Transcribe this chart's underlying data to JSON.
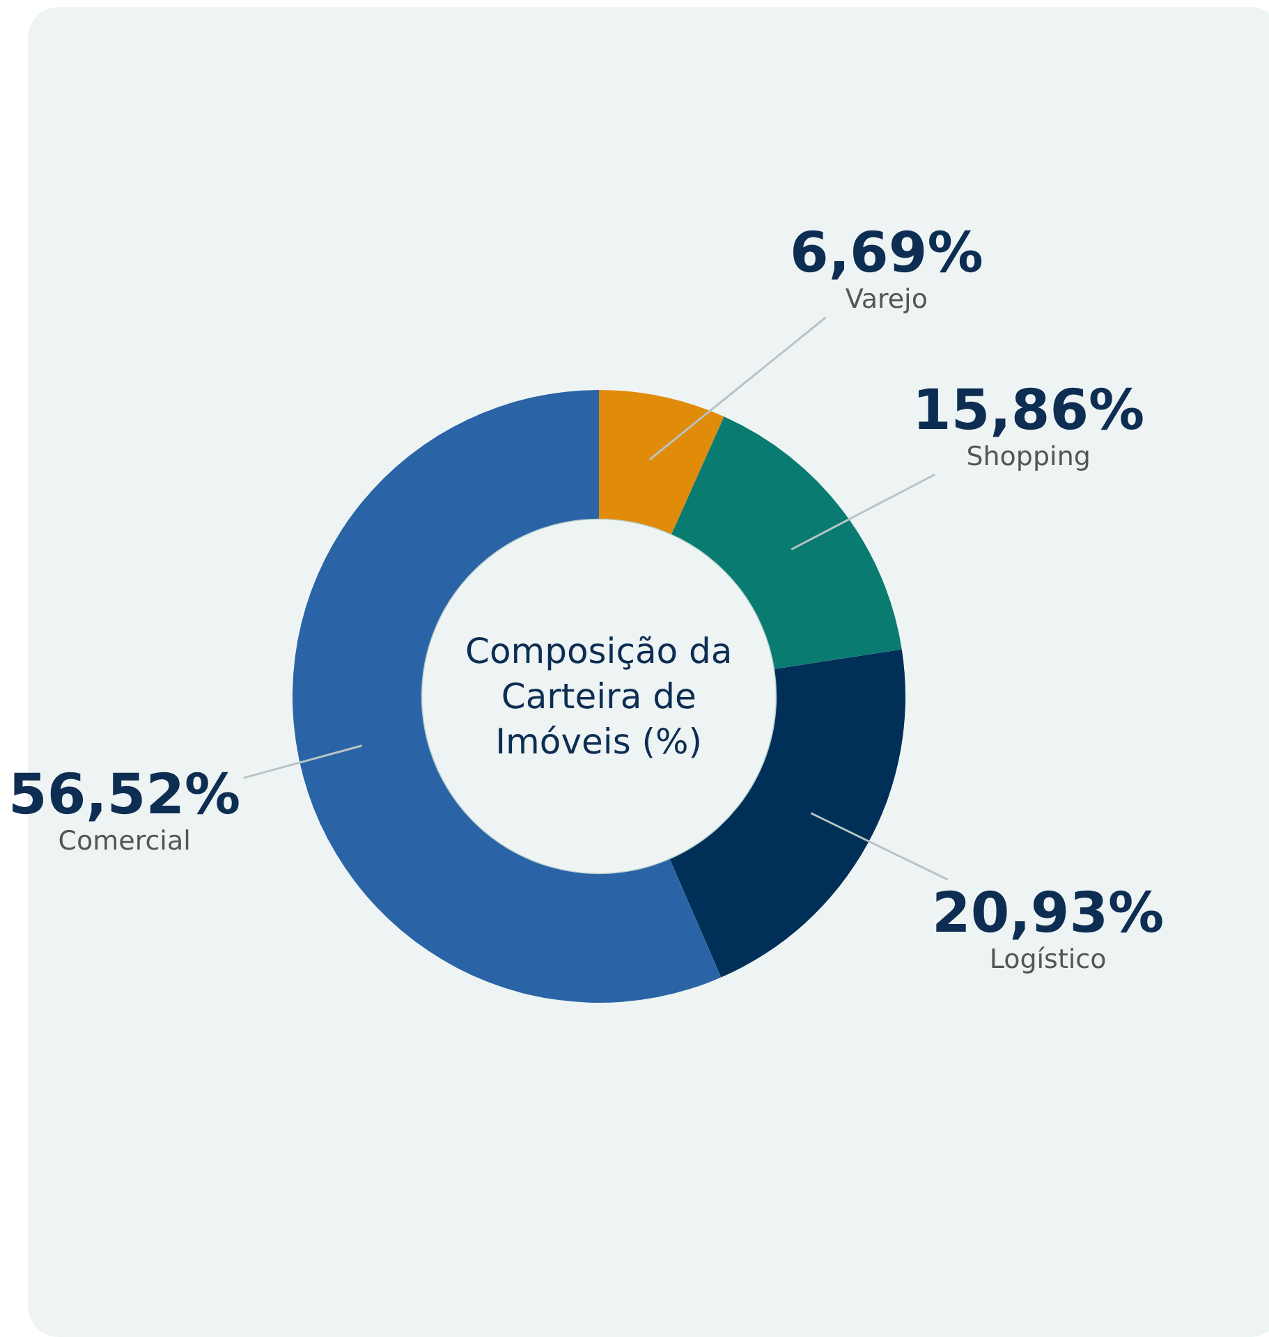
{
  "chart_data": {
    "type": "donut",
    "title": "Composição da Carteira de Imóveis (%)",
    "categories": [
      "Varejo",
      "Shopping",
      "Logístico",
      "Comercial"
    ],
    "values": [
      6.69,
      15.86,
      20.93,
      56.52
    ],
    "colors": [
      "#e08b0a",
      "#0a7b70",
      "#003057",
      "#2a64a6"
    ],
    "value_labels": [
      "6,69%",
      "15,86%",
      "20,93%",
      "56,52%"
    ],
    "legend": false
  }
}
